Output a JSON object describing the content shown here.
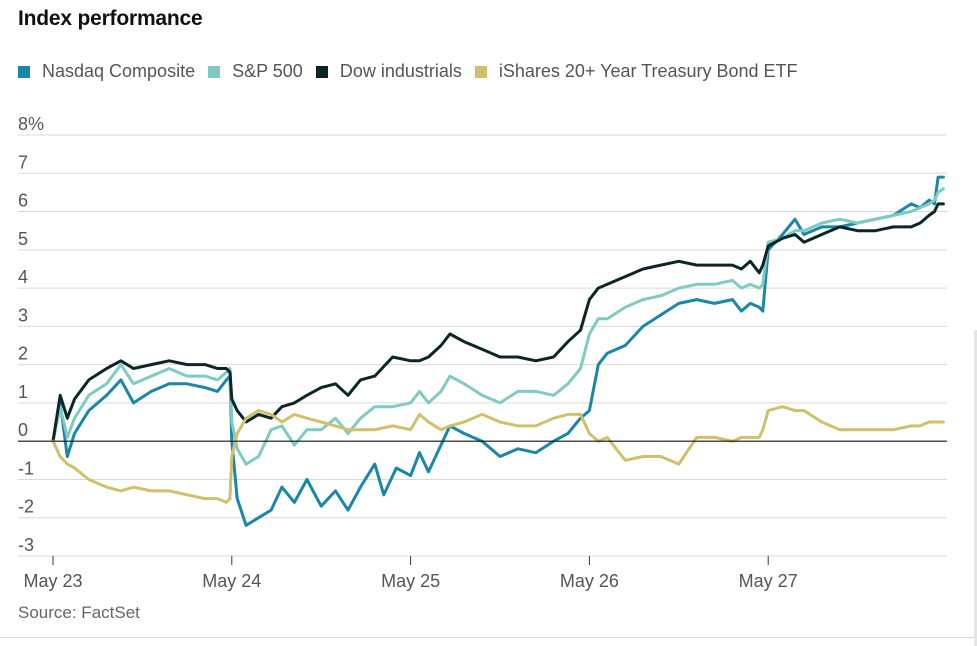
{
  "header": {
    "title": "Index performance"
  },
  "footer": {
    "source": "Source: FactSet"
  },
  "chart_data": {
    "type": "line",
    "title": "Index performance",
    "xlabel": "",
    "ylabel": "",
    "ylim": [
      -3,
      8
    ],
    "xlim": [
      0,
      5
    ],
    "y_ticks": [
      {
        "value": 8,
        "label": "8%"
      },
      {
        "value": 7,
        "label": "7"
      },
      {
        "value": 6,
        "label": "6"
      },
      {
        "value": 5,
        "label": "5"
      },
      {
        "value": 4,
        "label": "4"
      },
      {
        "value": 3,
        "label": "3"
      },
      {
        "value": 2,
        "label": "2"
      },
      {
        "value": 1,
        "label": "1"
      },
      {
        "value": 0,
        "label": "0"
      },
      {
        "value": -1,
        "label": "-1"
      },
      {
        "value": -2,
        "label": "-2"
      },
      {
        "value": -3,
        "label": "-3"
      }
    ],
    "x_ticks": [
      {
        "value": 0,
        "label": "May 23"
      },
      {
        "value": 1,
        "label": "May 24"
      },
      {
        "value": 2,
        "label": "May 25"
      },
      {
        "value": 3,
        "label": "May 26"
      },
      {
        "value": 4,
        "label": "May 27"
      }
    ],
    "legend_position": "top-left",
    "series": [
      {
        "name": "Nasdaq Composite",
        "color": "#1a86a8",
        "points": [
          [
            0,
            0
          ],
          [
            0.04,
            1.0
          ],
          [
            0.08,
            -0.4
          ],
          [
            0.12,
            0.2
          ],
          [
            0.2,
            0.8
          ],
          [
            0.3,
            1.2
          ],
          [
            0.38,
            1.6
          ],
          [
            0.45,
            1.0
          ],
          [
            0.55,
            1.3
          ],
          [
            0.65,
            1.5
          ],
          [
            0.75,
            1.5
          ],
          [
            0.85,
            1.4
          ],
          [
            0.92,
            1.3
          ],
          [
            0.97,
            1.6
          ],
          [
            0.99,
            1.7
          ],
          [
            1.0,
            0.0
          ],
          [
            1.03,
            -1.5
          ],
          [
            1.08,
            -2.2
          ],
          [
            1.15,
            -2.0
          ],
          [
            1.22,
            -1.8
          ],
          [
            1.28,
            -1.2
          ],
          [
            1.35,
            -1.6
          ],
          [
            1.42,
            -1.0
          ],
          [
            1.5,
            -1.7
          ],
          [
            1.58,
            -1.3
          ],
          [
            1.65,
            -1.8
          ],
          [
            1.72,
            -1.2
          ],
          [
            1.8,
            -0.6
          ],
          [
            1.85,
            -1.4
          ],
          [
            1.92,
            -0.7
          ],
          [
            2.0,
            -0.9
          ],
          [
            2.05,
            -0.3
          ],
          [
            2.1,
            -0.8
          ],
          [
            2.17,
            -0.1
          ],
          [
            2.22,
            0.4
          ],
          [
            2.3,
            0.2
          ],
          [
            2.4,
            0.0
          ],
          [
            2.5,
            -0.4
          ],
          [
            2.6,
            -0.2
          ],
          [
            2.7,
            -0.3
          ],
          [
            2.8,
            0.0
          ],
          [
            2.88,
            0.2
          ],
          [
            2.95,
            0.6
          ],
          [
            3.0,
            0.8
          ],
          [
            3.05,
            2.0
          ],
          [
            3.1,
            2.3
          ],
          [
            3.2,
            2.5
          ],
          [
            3.3,
            3.0
          ],
          [
            3.4,
            3.3
          ],
          [
            3.5,
            3.6
          ],
          [
            3.6,
            3.7
          ],
          [
            3.7,
            3.6
          ],
          [
            3.8,
            3.7
          ],
          [
            3.85,
            3.4
          ],
          [
            3.9,
            3.6
          ],
          [
            3.95,
            3.5
          ],
          [
            3.97,
            3.4
          ],
          [
            4.0,
            5.0
          ],
          [
            4.08,
            5.4
          ],
          [
            4.15,
            5.8
          ],
          [
            4.2,
            5.4
          ],
          [
            4.3,
            5.6
          ],
          [
            4.4,
            5.6
          ],
          [
            4.5,
            5.7
          ],
          [
            4.6,
            5.8
          ],
          [
            4.7,
            5.9
          ],
          [
            4.8,
            6.2
          ],
          [
            4.85,
            6.1
          ],
          [
            4.9,
            6.3
          ],
          [
            4.93,
            6.2
          ],
          [
            4.95,
            6.9
          ],
          [
            4.98,
            6.9
          ]
        ]
      },
      {
        "name": "S&P 500",
        "color": "#7fcbc3",
        "points": [
          [
            0,
            0
          ],
          [
            0.04,
            0.9
          ],
          [
            0.08,
            0.1
          ],
          [
            0.12,
            0.6
          ],
          [
            0.2,
            1.2
          ],
          [
            0.3,
            1.5
          ],
          [
            0.38,
            2.0
          ],
          [
            0.45,
            1.5
          ],
          [
            0.55,
            1.7
          ],
          [
            0.65,
            1.9
          ],
          [
            0.75,
            1.7
          ],
          [
            0.85,
            1.7
          ],
          [
            0.92,
            1.6
          ],
          [
            0.97,
            1.8
          ],
          [
            0.99,
            1.9
          ],
          [
            1.0,
            0.5
          ],
          [
            1.03,
            -0.2
          ],
          [
            1.08,
            -0.6
          ],
          [
            1.15,
            -0.4
          ],
          [
            1.22,
            0.3
          ],
          [
            1.28,
            0.4
          ],
          [
            1.35,
            -0.1
          ],
          [
            1.42,
            0.3
          ],
          [
            1.5,
            0.3
          ],
          [
            1.58,
            0.6
          ],
          [
            1.65,
            0.2
          ],
          [
            1.72,
            0.6
          ],
          [
            1.8,
            0.9
          ],
          [
            1.9,
            0.9
          ],
          [
            2.0,
            1.0
          ],
          [
            2.05,
            1.3
          ],
          [
            2.1,
            1.0
          ],
          [
            2.17,
            1.3
          ],
          [
            2.22,
            1.7
          ],
          [
            2.3,
            1.5
          ],
          [
            2.4,
            1.2
          ],
          [
            2.5,
            1.0
          ],
          [
            2.6,
            1.3
          ],
          [
            2.7,
            1.3
          ],
          [
            2.8,
            1.2
          ],
          [
            2.88,
            1.5
          ],
          [
            2.95,
            1.9
          ],
          [
            3.0,
            2.8
          ],
          [
            3.05,
            3.2
          ],
          [
            3.1,
            3.2
          ],
          [
            3.2,
            3.5
          ],
          [
            3.3,
            3.7
          ],
          [
            3.4,
            3.8
          ],
          [
            3.5,
            4.0
          ],
          [
            3.6,
            4.1
          ],
          [
            3.7,
            4.1
          ],
          [
            3.8,
            4.2
          ],
          [
            3.85,
            4.0
          ],
          [
            3.9,
            4.1
          ],
          [
            3.95,
            4.0
          ],
          [
            3.97,
            4.1
          ],
          [
            4.0,
            5.2
          ],
          [
            4.08,
            5.3
          ],
          [
            4.15,
            5.5
          ],
          [
            4.2,
            5.5
          ],
          [
            4.3,
            5.7
          ],
          [
            4.4,
            5.8
          ],
          [
            4.5,
            5.7
          ],
          [
            4.6,
            5.8
          ],
          [
            4.7,
            5.9
          ],
          [
            4.8,
            6.0
          ],
          [
            4.85,
            6.1
          ],
          [
            4.9,
            6.2
          ],
          [
            4.93,
            6.3
          ],
          [
            4.95,
            6.5
          ],
          [
            4.98,
            6.6
          ]
        ]
      },
      {
        "name": "Dow industrials",
        "color": "#0c2628",
        "points": [
          [
            0,
            0
          ],
          [
            0.04,
            1.2
          ],
          [
            0.08,
            0.6
          ],
          [
            0.12,
            1.1
          ],
          [
            0.2,
            1.6
          ],
          [
            0.3,
            1.9
          ],
          [
            0.38,
            2.1
          ],
          [
            0.45,
            1.9
          ],
          [
            0.55,
            2.0
          ],
          [
            0.65,
            2.1
          ],
          [
            0.75,
            2.0
          ],
          [
            0.85,
            2.0
          ],
          [
            0.92,
            1.9
          ],
          [
            0.97,
            1.9
          ],
          [
            0.99,
            1.8
          ],
          [
            1.0,
            1.1
          ],
          [
            1.03,
            0.8
          ],
          [
            1.08,
            0.5
          ],
          [
            1.15,
            0.7
          ],
          [
            1.22,
            0.6
          ],
          [
            1.28,
            0.9
          ],
          [
            1.35,
            1.0
          ],
          [
            1.42,
            1.2
          ],
          [
            1.5,
            1.4
          ],
          [
            1.58,
            1.5
          ],
          [
            1.65,
            1.2
          ],
          [
            1.72,
            1.6
          ],
          [
            1.8,
            1.7
          ],
          [
            1.9,
            2.2
          ],
          [
            2.0,
            2.1
          ],
          [
            2.05,
            2.1
          ],
          [
            2.1,
            2.2
          ],
          [
            2.17,
            2.5
          ],
          [
            2.22,
            2.8
          ],
          [
            2.3,
            2.6
          ],
          [
            2.4,
            2.4
          ],
          [
            2.5,
            2.2
          ],
          [
            2.6,
            2.2
          ],
          [
            2.7,
            2.1
          ],
          [
            2.8,
            2.2
          ],
          [
            2.88,
            2.6
          ],
          [
            2.95,
            2.9
          ],
          [
            3.0,
            3.7
          ],
          [
            3.05,
            4.0
          ],
          [
            3.1,
            4.1
          ],
          [
            3.2,
            4.3
          ],
          [
            3.3,
            4.5
          ],
          [
            3.4,
            4.6
          ],
          [
            3.5,
            4.7
          ],
          [
            3.6,
            4.6
          ],
          [
            3.7,
            4.6
          ],
          [
            3.8,
            4.6
          ],
          [
            3.85,
            4.5
          ],
          [
            3.9,
            4.7
          ],
          [
            3.95,
            4.4
          ],
          [
            3.97,
            4.6
          ],
          [
            4.0,
            5.1
          ],
          [
            4.08,
            5.3
          ],
          [
            4.15,
            5.4
          ],
          [
            4.2,
            5.2
          ],
          [
            4.3,
            5.4
          ],
          [
            4.4,
            5.6
          ],
          [
            4.5,
            5.5
          ],
          [
            4.6,
            5.5
          ],
          [
            4.7,
            5.6
          ],
          [
            4.8,
            5.6
          ],
          [
            4.85,
            5.7
          ],
          [
            4.9,
            5.9
          ],
          [
            4.93,
            6.0
          ],
          [
            4.95,
            6.2
          ],
          [
            4.98,
            6.2
          ]
        ]
      },
      {
        "name": "iShares 20+ Year Treasury Bond ETF",
        "color": "#d1c06b",
        "points": [
          [
            0,
            0
          ],
          [
            0.04,
            -0.4
          ],
          [
            0.08,
            -0.6
          ],
          [
            0.12,
            -0.7
          ],
          [
            0.2,
            -1.0
          ],
          [
            0.3,
            -1.2
          ],
          [
            0.38,
            -1.3
          ],
          [
            0.45,
            -1.2
          ],
          [
            0.55,
            -1.3
          ],
          [
            0.65,
            -1.3
          ],
          [
            0.75,
            -1.4
          ],
          [
            0.85,
            -1.5
          ],
          [
            0.92,
            -1.5
          ],
          [
            0.97,
            -1.6
          ],
          [
            0.99,
            -1.5
          ],
          [
            1.0,
            -0.4
          ],
          [
            1.03,
            0.2
          ],
          [
            1.08,
            0.6
          ],
          [
            1.15,
            0.8
          ],
          [
            1.22,
            0.7
          ],
          [
            1.28,
            0.5
          ],
          [
            1.35,
            0.7
          ],
          [
            1.42,
            0.6
          ],
          [
            1.5,
            0.5
          ],
          [
            1.58,
            0.4
          ],
          [
            1.65,
            0.3
          ],
          [
            1.72,
            0.3
          ],
          [
            1.8,
            0.3
          ],
          [
            1.9,
            0.4
          ],
          [
            2.0,
            0.3
          ],
          [
            2.05,
            0.7
          ],
          [
            2.1,
            0.5
          ],
          [
            2.17,
            0.3
          ],
          [
            2.22,
            0.4
          ],
          [
            2.3,
            0.5
          ],
          [
            2.4,
            0.7
          ],
          [
            2.5,
            0.5
          ],
          [
            2.6,
            0.4
          ],
          [
            2.7,
            0.4
          ],
          [
            2.8,
            0.6
          ],
          [
            2.88,
            0.7
          ],
          [
            2.95,
            0.7
          ],
          [
            3.0,
            0.2
          ],
          [
            3.05,
            0.0
          ],
          [
            3.1,
            0.1
          ],
          [
            3.2,
            -0.5
          ],
          [
            3.3,
            -0.4
          ],
          [
            3.4,
            -0.4
          ],
          [
            3.5,
            -0.6
          ],
          [
            3.6,
            0.1
          ],
          [
            3.7,
            0.1
          ],
          [
            3.8,
            0.0
          ],
          [
            3.85,
            0.1
          ],
          [
            3.9,
            0.1
          ],
          [
            3.95,
            0.1
          ],
          [
            3.97,
            0.3
          ],
          [
            4.0,
            0.8
          ],
          [
            4.08,
            0.9
          ],
          [
            4.15,
            0.8
          ],
          [
            4.2,
            0.8
          ],
          [
            4.3,
            0.5
          ],
          [
            4.4,
            0.3
          ],
          [
            4.5,
            0.3
          ],
          [
            4.6,
            0.3
          ],
          [
            4.7,
            0.3
          ],
          [
            4.8,
            0.4
          ],
          [
            4.85,
            0.4
          ],
          [
            4.9,
            0.5
          ],
          [
            4.93,
            0.5
          ],
          [
            4.95,
            0.5
          ],
          [
            4.98,
            0.5
          ]
        ]
      }
    ]
  }
}
